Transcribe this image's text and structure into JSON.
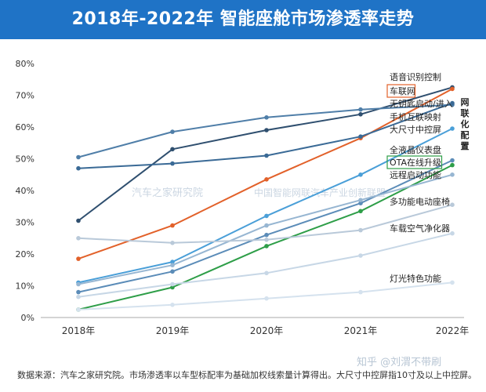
{
  "chart_data": {
    "type": "line",
    "title": "2018年-2022年 智能座舱市场渗透率走势",
    "categories": [
      "2018年",
      "2019年",
      "2020年",
      "2021年",
      "2022年"
    ],
    "ylim": [
      0,
      80
    ],
    "yticks": [
      "0%",
      "10%",
      "20%",
      "30%",
      "40%",
      "50%",
      "60%",
      "70%",
      "80%"
    ],
    "grid": false,
    "series": [
      {
        "name": "语音识别控制",
        "values": [
          30.5,
          53,
          59,
          64,
          72.5
        ],
        "color": "#2f4f6f"
      },
      {
        "name": "车联网",
        "values": [
          18.5,
          29,
          43.5,
          56.5,
          72
        ],
        "color": "#e2612a"
      },
      {
        "name": "无钥匙启动/进入",
        "values": [
          50.5,
          58.5,
          63,
          65.5,
          67
        ],
        "color": "#4f7ea8"
      },
      {
        "name": "手机互联映射",
        "values": [
          47,
          48.5,
          51,
          57,
          67.5
        ],
        "color": "#3a6a96"
      },
      {
        "name": "大尺寸中控屏",
        "values": [
          11,
          17.5,
          32,
          45,
          59.5
        ],
        "color": "#4a9fd8"
      },
      {
        "name": "全液晶仪表盘",
        "values": [
          8,
          14.5,
          26,
          36,
          49.5
        ],
        "color": "#5b8cb8"
      },
      {
        "name": "OTA在线升级",
        "values": [
          2.5,
          9.5,
          22.5,
          33.5,
          48
        ],
        "color": "#2e9e48"
      },
      {
        "name": "远程启动功能",
        "values": [
          10.5,
          16.5,
          29,
          37,
          45
        ],
        "color": "#97b6d2"
      },
      {
        "name": "多功能电动座椅",
        "values": [
          25,
          23.5,
          24.5,
          27.5,
          35.5
        ],
        "color": "#b9c9d9"
      },
      {
        "name": "车载空气净化器",
        "values": [
          6.5,
          10.5,
          14,
          19.5,
          26.5
        ],
        "color": "#c7d7e6"
      },
      {
        "name": "灯光特色功能",
        "values": [
          2.5,
          4,
          6,
          8,
          11
        ],
        "color": "#d5e2ee"
      }
    ],
    "group_label": "网联化配置",
    "boxed_labels": [
      "车联网",
      "OTA在线升级"
    ],
    "watermarks": [
      "汽车之家研究院",
      "中国智能网联汽车产业创新联盟"
    ]
  },
  "footnote": "数据来源：汽车之家研究院。市场渗透率以车型标配率为基础加权线索量计算得出。大尺寸中控屏指10寸及以上中控屏。",
  "signature": "知乎 @刘渭不带刷"
}
